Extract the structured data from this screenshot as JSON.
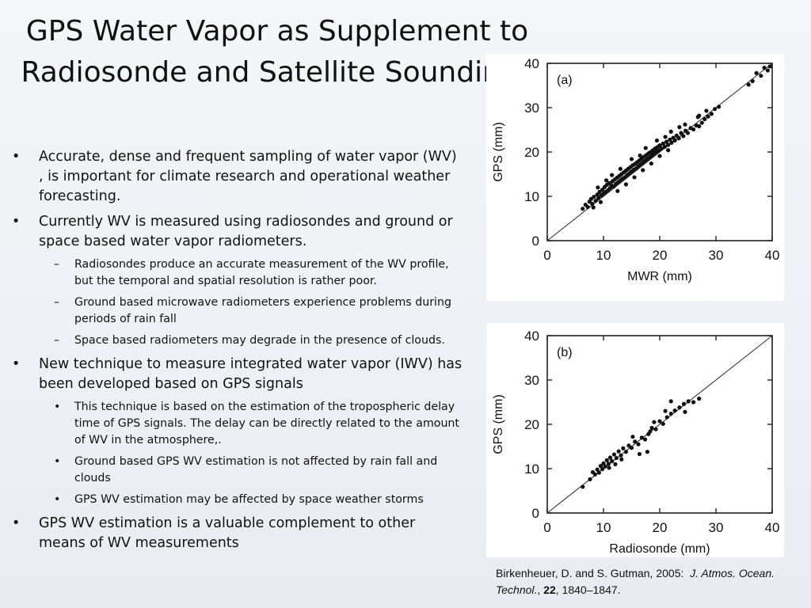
{
  "slide": {
    "title": "GPS Water Vapor as Supplement to Radiosonde and Satellite Soundings",
    "bullets": [
      {
        "text": "Accurate, dense and frequent sampling of water vapor (WV) , is important for climate research and operational weather forecasting.",
        "sub": []
      },
      {
        "text": "Currently WV is measured using radiosondes and ground or space based water vapor radiometers.",
        "sub_bullet": "–",
        "sub": [
          "Radiosondes produce an accurate measurement of the WV profile, but the temporal and spatial resolution is rather poor.",
          "Ground based microwave radiometers experience problems during periods of rain fall",
          "Space based radiometers may degrade in the presence of clouds."
        ]
      },
      {
        "text": "New technique to measure integrated water vapor (IWV) has been developed based on GPS signals",
        "sub_bullet": "•",
        "sub": [
          "This technique is based on the estimation of the tropospheric delay time of GPS signals. The delay can be directly related to the amount of WV in the atmosphere,.",
          "Ground based GPS WV estimation is not affected by rain fall and clouds",
          "GPS WV estimation may be affected by space weather storms"
        ]
      },
      {
        "text": "GPS WV estimation is a valuable complement to other means of WV measurements",
        "sub": []
      }
    ],
    "bullet_symbol": "•",
    "citation": {
      "authors": "Birkenheuer, D. and S. Gutman, 2005:",
      "journal": "J. Atmos. Ocean. Technol.",
      "sep": ",",
      "volume": "22",
      "pages": ", 1840–1847."
    }
  },
  "chart_data": [
    {
      "type": "scatter",
      "panel_label": "(a)",
      "xlabel": "MWR (mm)",
      "ylabel": "GPS (mm)",
      "xlim": [
        0,
        40
      ],
      "ylim": [
        0,
        40
      ],
      "xticks": [
        0,
        10,
        20,
        30,
        40
      ],
      "yticks": [
        0,
        10,
        20,
        30,
        40
      ],
      "reference_line": {
        "from": [
          0,
          0
        ],
        "to": [
          40,
          40
        ]
      },
      "points": [
        [
          6.3,
          7.2
        ],
        [
          6.8,
          8.1
        ],
        [
          7.2,
          7.6
        ],
        [
          7.5,
          8.8
        ],
        [
          7.8,
          9.4
        ],
        [
          8.0,
          8.3
        ],
        [
          8.3,
          9.9
        ],
        [
          8.6,
          9.0
        ],
        [
          8.9,
          10.4
        ],
        [
          9.1,
          9.6
        ],
        [
          9.3,
          11.0
        ],
        [
          9.6,
          10.2
        ],
        [
          9.8,
          11.5
        ],
        [
          10.0,
          10.6
        ],
        [
          10.2,
          12.1
        ],
        [
          10.4,
          11.0
        ],
        [
          10.6,
          12.6
        ],
        [
          10.8,
          11.4
        ],
        [
          11.0,
          13.0
        ],
        [
          11.2,
          11.9
        ],
        [
          11.4,
          12.5
        ],
        [
          11.6,
          13.4
        ],
        [
          11.8,
          12.2
        ],
        [
          12.0,
          13.8
        ],
        [
          12.2,
          12.8
        ],
        [
          12.4,
          14.2
        ],
        [
          12.6,
          13.2
        ],
        [
          12.8,
          14.6
        ],
        [
          13.0,
          13.6
        ],
        [
          13.2,
          15.0
        ],
        [
          13.4,
          14.0
        ],
        [
          13.6,
          15.4
        ],
        [
          13.8,
          14.3
        ],
        [
          14.0,
          15.8
        ],
        [
          14.2,
          14.8
        ],
        [
          14.4,
          16.2
        ],
        [
          14.6,
          15.2
        ],
        [
          14.8,
          16.6
        ],
        [
          15.0,
          15.6
        ],
        [
          15.2,
          17.0
        ],
        [
          15.4,
          16.0
        ],
        [
          15.6,
          17.3
        ],
        [
          15.8,
          16.3
        ],
        [
          16.0,
          17.7
        ],
        [
          16.2,
          16.8
        ],
        [
          16.4,
          18.1
        ],
        [
          16.6,
          17.2
        ],
        [
          16.8,
          18.5
        ],
        [
          17.0,
          17.6
        ],
        [
          17.2,
          18.9
        ],
        [
          17.4,
          18.0
        ],
        [
          17.6,
          19.3
        ],
        [
          17.8,
          18.4
        ],
        [
          18.0,
          19.7
        ],
        [
          18.2,
          18.8
        ],
        [
          18.4,
          20.0
        ],
        [
          18.6,
          19.2
        ],
        [
          18.8,
          20.4
        ],
        [
          19.0,
          19.6
        ],
        [
          19.2,
          20.8
        ],
        [
          19.4,
          20.0
        ],
        [
          19.6,
          21.1
        ],
        [
          19.8,
          20.3
        ],
        [
          20.0,
          21.5
        ],
        [
          20.3,
          20.8
        ],
        [
          20.6,
          21.9
        ],
        [
          20.9,
          21.2
        ],
        [
          21.2,
          22.3
        ],
        [
          21.5,
          21.6
        ],
        [
          21.8,
          22.8
        ],
        [
          22.1,
          22.1
        ],
        [
          22.4,
          23.2
        ],
        [
          22.7,
          22.6
        ],
        [
          23.0,
          23.7
        ],
        [
          23.4,
          23.1
        ],
        [
          23.8,
          24.3
        ],
        [
          24.2,
          23.6
        ],
        [
          24.6,
          24.8
        ],
        [
          25.0,
          24.3
        ],
        [
          25.5,
          25.4
        ],
        [
          26.0,
          25.1
        ],
        [
          26.5,
          26.0
        ],
        [
          27.0,
          25.8
        ],
        [
          27.5,
          26.6
        ],
        [
          28.0,
          27.4
        ],
        [
          28.6,
          28.0
        ],
        [
          29.2,
          28.6
        ],
        [
          29.8,
          29.7
        ],
        [
          30.5,
          30.2
        ],
        [
          12.5,
          11.2
        ],
        [
          14.0,
          12.7
        ],
        [
          15.5,
          14.3
        ],
        [
          17.0,
          15.9
        ],
        [
          18.5,
          17.4
        ],
        [
          20.0,
          19.1
        ],
        [
          21.5,
          20.4
        ],
        [
          10.5,
          13.6
        ],
        [
          13.0,
          16.2
        ],
        [
          15.0,
          18.4
        ],
        [
          17.5,
          20.9
        ],
        [
          19.5,
          22.6
        ],
        [
          22.0,
          24.6
        ],
        [
          24.5,
          26.2
        ],
        [
          27.0,
          28.2
        ],
        [
          9.0,
          12.0
        ],
        [
          11.5,
          14.8
        ],
        [
          8.2,
          7.5
        ],
        [
          9.5,
          8.7
        ],
        [
          36.5,
          36.0
        ],
        [
          37.2,
          37.8
        ],
        [
          38.0,
          37.2
        ],
        [
          38.6,
          39.0
        ],
        [
          39.2,
          38.4
        ],
        [
          39.6,
          39.3
        ],
        [
          35.8,
          35.2
        ],
        [
          26.8,
          27.9
        ],
        [
          28.3,
          29.3
        ],
        [
          23.5,
          25.6
        ],
        [
          21.0,
          23.4
        ],
        [
          16.5,
          19.2
        ]
      ]
    },
    {
      "type": "scatter",
      "panel_label": "(b)",
      "xlabel": "Radiosonde (mm)",
      "ylabel": "GPS (mm)",
      "xlim": [
        0,
        40
      ],
      "ylim": [
        0,
        40
      ],
      "xticks": [
        0,
        10,
        20,
        30,
        40
      ],
      "yticks": [
        0,
        10,
        20,
        30,
        40
      ],
      "reference_line": {
        "from": [
          0,
          0
        ],
        "to": [
          40,
          40
        ]
      },
      "points": [
        [
          6.3,
          5.9
        ],
        [
          7.6,
          7.6
        ],
        [
          8.1,
          9.2
        ],
        [
          8.5,
          8.7
        ],
        [
          8.9,
          9.8
        ],
        [
          9.2,
          9.1
        ],
        [
          9.5,
          10.6
        ],
        [
          9.8,
          9.9
        ],
        [
          10.0,
          11.2
        ],
        [
          10.3,
          10.5
        ],
        [
          10.6,
          11.9
        ],
        [
          10.9,
          11.1
        ],
        [
          11.2,
          12.5
        ],
        [
          11.5,
          11.7
        ],
        [
          11.9,
          13.2
        ],
        [
          12.3,
          12.4
        ],
        [
          12.7,
          13.9
        ],
        [
          13.1,
          13.0
        ],
        [
          13.5,
          14.6
        ],
        [
          14.0,
          13.8
        ],
        [
          14.5,
          15.2
        ],
        [
          15.0,
          14.7
        ],
        [
          15.6,
          16.1
        ],
        [
          16.2,
          15.5
        ],
        [
          16.8,
          17.0
        ],
        [
          17.4,
          16.6
        ],
        [
          18.0,
          17.8
        ],
        [
          18.6,
          19.2
        ],
        [
          19.3,
          18.9
        ],
        [
          20.0,
          20.7
        ],
        [
          20.6,
          20.1
        ],
        [
          21.3,
          21.6
        ],
        [
          22.0,
          22.4
        ],
        [
          22.7,
          23.1
        ],
        [
          23.5,
          23.8
        ],
        [
          24.3,
          24.6
        ],
        [
          25.1,
          25.2
        ],
        [
          26.0,
          25.0
        ],
        [
          27.0,
          25.8
        ],
        [
          16.4,
          13.3
        ],
        [
          17.8,
          13.8
        ],
        [
          22.0,
          25.2
        ],
        [
          21.0,
          23.0
        ],
        [
          13.2,
          12.1
        ],
        [
          11.0,
          10.2
        ],
        [
          19.0,
          20.5
        ],
        [
          24.5,
          22.8
        ],
        [
          15.2,
          17.2
        ],
        [
          18.3,
          18.4
        ],
        [
          12.1,
          11.0
        ]
      ]
    }
  ]
}
